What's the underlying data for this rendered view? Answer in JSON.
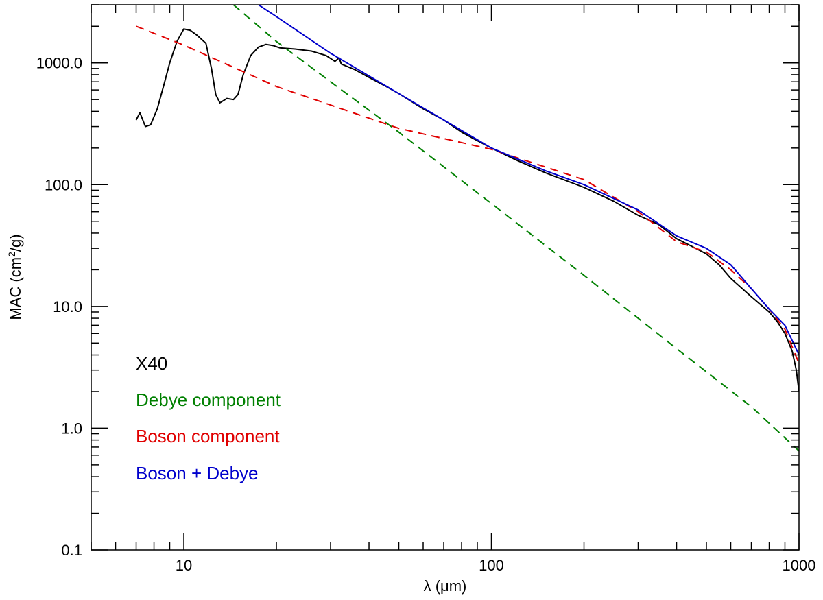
{
  "chart_data": {
    "type": "line",
    "xlabel": "λ (μm)",
    "ylabel_main": "MAC (cm",
    "ylabel_sup": "2",
    "ylabel_end": "/g)",
    "xscale": "log",
    "yscale": "log",
    "xlim": [
      5,
      1000
    ],
    "ylim": [
      0.1,
      3000
    ],
    "x_ticks": [
      {
        "value": 10,
        "label": "10"
      },
      {
        "value": 100,
        "label": "100"
      },
      {
        "value": 1000,
        "label": "1000"
      }
    ],
    "y_ticks": [
      {
        "value": 0.1,
        "label": "0.1"
      },
      {
        "value": 1,
        "label": "1.0"
      },
      {
        "value": 10,
        "label": "10.0"
      },
      {
        "value": 100,
        "label": "100.0"
      },
      {
        "value": 1000,
        "label": "1000.0"
      }
    ],
    "grid": false,
    "legend_placement": "bottom-left",
    "series": [
      {
        "name": "X40",
        "color": "#000000",
        "dash": "solid",
        "points": [
          [
            7.0,
            340
          ],
          [
            7.2,
            390
          ],
          [
            7.5,
            300
          ],
          [
            7.8,
            310
          ],
          [
            8.2,
            420
          ],
          [
            8.6,
            650
          ],
          [
            9.0,
            1000
          ],
          [
            9.5,
            1500
          ],
          [
            10.0,
            1900
          ],
          [
            10.5,
            1850
          ],
          [
            11.0,
            1700
          ],
          [
            11.8,
            1450
          ],
          [
            12.3,
            900
          ],
          [
            12.7,
            550
          ],
          [
            13.1,
            470
          ],
          [
            13.8,
            510
          ],
          [
            14.5,
            500
          ],
          [
            15.0,
            550
          ],
          [
            15.6,
            800
          ],
          [
            16.5,
            1150
          ],
          [
            17.5,
            1350
          ],
          [
            18.5,
            1420
          ],
          [
            19.5,
            1390
          ],
          [
            20.5,
            1330
          ],
          [
            23.0,
            1300
          ],
          [
            26.0,
            1250
          ],
          [
            29.0,
            1150
          ],
          [
            31.0,
            1030
          ],
          [
            32.0,
            1100
          ],
          [
            32.5,
            980
          ],
          [
            36.0,
            880
          ],
          [
            40.0,
            760
          ],
          [
            45.0,
            650
          ],
          [
            50.0,
            560
          ],
          [
            60.0,
            420
          ],
          [
            70.0,
            340
          ],
          [
            80.0,
            270
          ],
          [
            90.0,
            230
          ],
          [
            100.0,
            200
          ],
          [
            120.0,
            160
          ],
          [
            150.0,
            125
          ],
          [
            200.0,
            95
          ],
          [
            250.0,
            73
          ],
          [
            300.0,
            56
          ],
          [
            350.0,
            47
          ],
          [
            400.0,
            36
          ],
          [
            450.0,
            31
          ],
          [
            500.0,
            27
          ],
          [
            550.0,
            22
          ],
          [
            600.0,
            17
          ],
          [
            700.0,
            12
          ],
          [
            800.0,
            9
          ],
          [
            850.0,
            7.5
          ],
          [
            900.0,
            6.0
          ],
          [
            950.0,
            4.3
          ],
          [
            980.0,
            3.0
          ],
          [
            1000.0,
            2.0
          ]
        ]
      },
      {
        "name": "Debye component",
        "color": "#008000",
        "dash": "12,8",
        "points": [
          [
            14.5,
            3000
          ],
          [
            20.0,
            1500
          ],
          [
            30.0,
            700
          ],
          [
            50.0,
            270
          ],
          [
            100.0,
            70
          ],
          [
            200.0,
            18
          ],
          [
            400.0,
            4.5
          ],
          [
            700.0,
            1.5
          ],
          [
            1000.0,
            0.65
          ]
        ]
      },
      {
        "name": "Boson component",
        "color": "#e00000",
        "dash": "12,8",
        "points": [
          [
            7.0,
            2000
          ],
          [
            10.0,
            1400
          ],
          [
            20.0,
            640
          ],
          [
            50.0,
            290
          ],
          [
            100.0,
            195
          ],
          [
            200.0,
            110
          ],
          [
            300.0,
            60
          ],
          [
            400.0,
            34
          ],
          [
            500.0,
            28
          ],
          [
            600.0,
            20
          ],
          [
            700.0,
            14
          ],
          [
            800.0,
            9.5
          ],
          [
            900.0,
            6.5
          ],
          [
            1000.0,
            3.4
          ]
        ]
      },
      {
        "name": "Boson + Debye",
        "color": "#0000cc",
        "dash": "solid",
        "points": [
          [
            17.5,
            3000
          ],
          [
            20.0,
            2400
          ],
          [
            30.0,
            1200
          ],
          [
            50.0,
            560
          ],
          [
            100.0,
            200
          ],
          [
            150.0,
            130
          ],
          [
            200.0,
            100
          ],
          [
            300.0,
            62
          ],
          [
            400.0,
            38
          ],
          [
            500.0,
            30
          ],
          [
            600.0,
            22
          ],
          [
            700.0,
            14
          ],
          [
            800.0,
            9.5
          ],
          [
            900.0,
            7.0
          ],
          [
            1000.0,
            4.0
          ]
        ]
      }
    ],
    "legend": [
      {
        "label": "X40",
        "color": "#000000"
      },
      {
        "label": "Debye component",
        "color": "#008000"
      },
      {
        "label": "Boson component",
        "color": "#e00000"
      },
      {
        "label": "Boson + Debye",
        "color": "#0000cc"
      }
    ]
  }
}
